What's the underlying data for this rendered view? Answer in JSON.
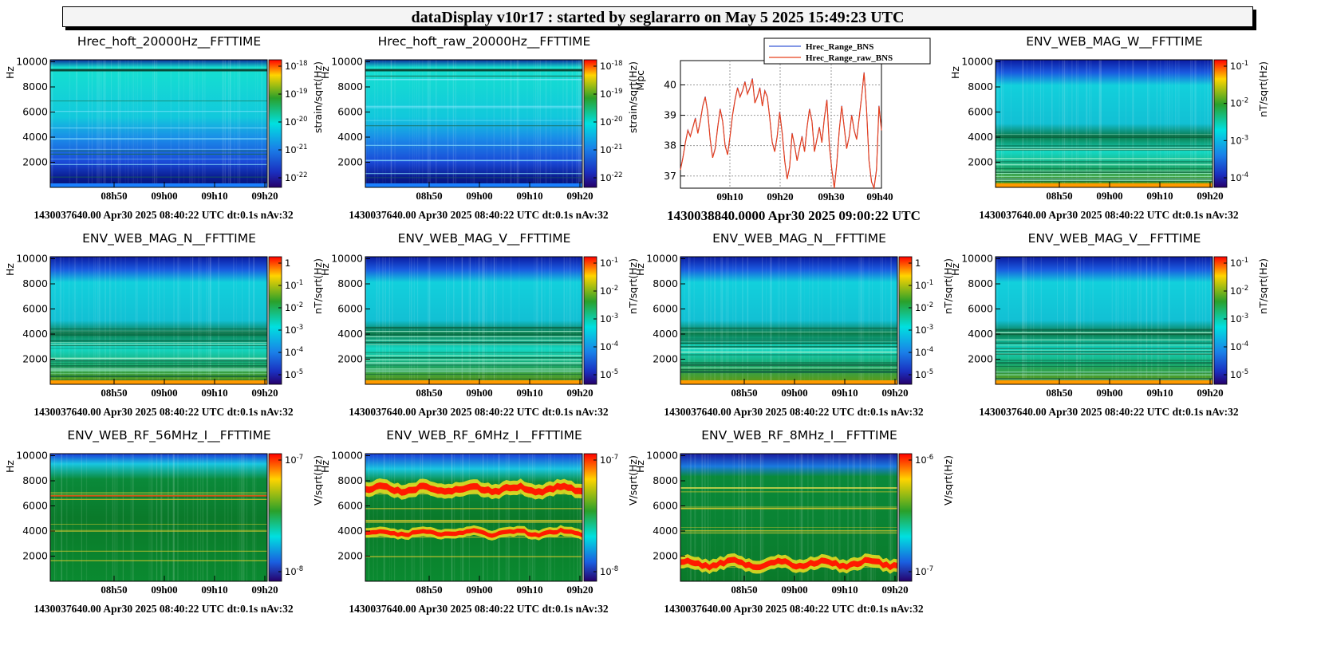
{
  "header": {
    "title": "dataDisplay v10r17 : started by seglararro on May  5 2025 15:49:23 UTC"
  },
  "chart_data": [
    {
      "type": "heatmap",
      "id": "p0",
      "title": "Hrec_hoft_20000Hz__FFTTIME",
      "ylabel": "Hz",
      "zlabel": "strain/sqrt(Hz)",
      "yticks": [
        "10000",
        "8000",
        "6000",
        "4000",
        "2000"
      ],
      "xticks": [
        "08h50",
        "09h00",
        "09h10",
        "09h20"
      ],
      "cbticks": [
        {
          "b": "10",
          "e": "-18"
        },
        {
          "b": "10",
          "e": "-19"
        },
        {
          "b": "10",
          "e": "-20"
        },
        {
          "b": "10",
          "e": "-21"
        },
        {
          "b": "10",
          "e": "-22"
        }
      ],
      "footer": "1430037640.00 Apr30 2025 08:40:22 UTC dt:0.1s nAv:32",
      "style": "hoft"
    },
    {
      "type": "heatmap",
      "id": "p1",
      "title": "Hrec_hoft_raw_20000Hz__FFTTIME",
      "ylabel": "Hz",
      "zlabel": "strain/sqrt(Hz)",
      "yticks": [
        "10000",
        "8000",
        "6000",
        "4000",
        "2000"
      ],
      "xticks": [
        "08h50",
        "09h00",
        "09h10",
        "09h20"
      ],
      "cbticks": [
        {
          "b": "10",
          "e": "-18"
        },
        {
          "b": "10",
          "e": "-19"
        },
        {
          "b": "10",
          "e": "-20"
        },
        {
          "b": "10",
          "e": "-21"
        },
        {
          "b": "10",
          "e": "-22"
        }
      ],
      "footer": "1430037640.00 Apr30 2025 08:40:22 UTC dt:0.1s nAv:32",
      "style": "hoft"
    },
    {
      "type": "line",
      "id": "p2",
      "title": "",
      "ylabel": "Mpc",
      "ylim": [
        36.6,
        40.8
      ],
      "yticks": [
        "40",
        "39",
        "38",
        "37"
      ],
      "xticks": [
        "09h10",
        "09h20",
        "09h30",
        "09h40"
      ],
      "series": [
        {
          "name": "Hrec_Range_BNS",
          "color": "#3b5bd6"
        },
        {
          "name": "Hrec_Range_raw_BNS",
          "color": "#e8401c"
        }
      ],
      "values": [
        37.2,
        37.6,
        38.1,
        38.5,
        38.3,
        38.6,
        38.9,
        38.4,
        38.8,
        39.3,
        39.6,
        39.1,
        38.2,
        37.6,
        37.9,
        38.6,
        39.2,
        38.8,
        38.0,
        37.7,
        38.3,
        39.0,
        39.5,
        39.9,
        39.6,
        39.8,
        40.1,
        39.7,
        39.9,
        40.2,
        39.4,
        39.6,
        39.9,
        39.3,
        39.8,
        39.6,
        38.9,
        38.1,
        37.8,
        38.3,
        39.1,
        38.4,
        37.5,
        36.9,
        37.3,
        38.4,
        38.0,
        37.5,
        37.9,
        38.3,
        37.8,
        38.6,
        39.2,
        38.8,
        37.8,
        38.2,
        38.6,
        38.1,
        38.9,
        39.5,
        38.0,
        37.2,
        36.6,
        37.4,
        38.5,
        39.3,
        38.6,
        37.9,
        38.3,
        39.0,
        38.5,
        38.2,
        38.9,
        39.6,
        40.4,
        39.2,
        37.5,
        36.8,
        36.6,
        37.2,
        39.3,
        38.5
      ],
      "footer": "1430038840.0000 Apr30 2025 09:00:22 UTC"
    },
    {
      "type": "heatmap",
      "id": "p3",
      "title": "ENV_WEB_MAG_W__FFTTIME",
      "ylabel": "Hz",
      "zlabel": "nT/sqrt(Hz)",
      "yticks": [
        "10000",
        "8000",
        "6000",
        "4000",
        "2000"
      ],
      "xticks": [
        "08h50",
        "09h00",
        "09h10",
        "09h20"
      ],
      "cbticks": [
        {
          "b": "10",
          "e": "-1"
        },
        {
          "b": "10",
          "e": "-2"
        },
        {
          "b": "10",
          "e": "-3"
        },
        {
          "b": "10",
          "e": "-4"
        }
      ],
      "footer": "1430037640.00 Apr30 2025 08:40:22 UTC dt:0.1s nAv:32",
      "style": "mag"
    },
    {
      "type": "heatmap",
      "id": "p4",
      "title": "ENV_WEB_MAG_N__FFTTIME",
      "ylabel": "Hz",
      "zlabel": "nT/sqrt(Hz)",
      "yticks": [
        "10000",
        "8000",
        "6000",
        "4000",
        "2000"
      ],
      "xticks": [
        "08h50",
        "09h00",
        "09h10",
        "09h20"
      ],
      "cbticks": [
        {
          "b": "1",
          "e": ""
        },
        {
          "b": "10",
          "e": "-1"
        },
        {
          "b": "10",
          "e": "-2"
        },
        {
          "b": "10",
          "e": "-3"
        },
        {
          "b": "10",
          "e": "-4"
        },
        {
          "b": "10",
          "e": "-5"
        }
      ],
      "footer": "1430037640.00 Apr30 2025 08:40:22 UTC dt:0.1s nAv:32",
      "style": "mag"
    },
    {
      "type": "heatmap",
      "id": "p5",
      "title": "ENV_WEB_MAG_V__FFTTIME",
      "ylabel": "Hz",
      "zlabel": "nT/sqrt(Hz)",
      "yticks": [
        "10000",
        "8000",
        "6000",
        "4000",
        "2000"
      ],
      "xticks": [
        "08h50",
        "09h00",
        "09h10",
        "09h20"
      ],
      "cbticks": [
        {
          "b": "10",
          "e": "-1"
        },
        {
          "b": "10",
          "e": "-2"
        },
        {
          "b": "10",
          "e": "-3"
        },
        {
          "b": "10",
          "e": "-4"
        },
        {
          "b": "10",
          "e": "-5"
        }
      ],
      "footer": "1430037640.00 Apr30 2025 08:40:22 UTC dt:0.1s nAv:32",
      "style": "mag"
    },
    {
      "type": "heatmap",
      "id": "p6",
      "title": "ENV_WEB_MAG_N__FFTTIME",
      "ylabel": "Hz",
      "zlabel": "nT/sqrt(Hz)",
      "yticks": [
        "10000",
        "8000",
        "6000",
        "4000",
        "2000"
      ],
      "xticks": [
        "08h50",
        "09h00",
        "09h10",
        "09h20"
      ],
      "cbticks": [
        {
          "b": "1",
          "e": ""
        },
        {
          "b": "10",
          "e": "-1"
        },
        {
          "b": "10",
          "e": "-2"
        },
        {
          "b": "10",
          "e": "-3"
        },
        {
          "b": "10",
          "e": "-4"
        },
        {
          "b": "10",
          "e": "-5"
        }
      ],
      "footer": "1430037640.00 Apr30 2025 08:40:22 UTC dt:0.1s nAv:32",
      "style": "mag"
    },
    {
      "type": "heatmap",
      "id": "p7",
      "title": "ENV_WEB_MAG_V__FFTTIME",
      "ylabel": "Hz",
      "zlabel": "nT/sqrt(Hz)",
      "yticks": [
        "10000",
        "8000",
        "6000",
        "4000",
        "2000"
      ],
      "xticks": [
        "08h50",
        "09h00",
        "09h10",
        "09h20"
      ],
      "cbticks": [
        {
          "b": "10",
          "e": "-1"
        },
        {
          "b": "10",
          "e": "-2"
        },
        {
          "b": "10",
          "e": "-3"
        },
        {
          "b": "10",
          "e": "-4"
        },
        {
          "b": "10",
          "e": "-5"
        }
      ],
      "footer": "1430037640.00 Apr30 2025 08:40:22 UTC dt:0.1s nAv:32",
      "style": "mag"
    },
    {
      "type": "heatmap",
      "id": "p8",
      "title": "ENV_WEB_RF_56MHz_I__FFTTIME",
      "ylabel": "Hz",
      "zlabel": "V/sqrt(Hz)",
      "yticks": [
        "10000",
        "8000",
        "6000",
        "4000",
        "2000"
      ],
      "xticks": [
        "08h50",
        "09h00",
        "09h10",
        "09h20"
      ],
      "cbticks": [
        {
          "b": "10",
          "e": "-7"
        },
        {
          "b": "10",
          "e": "-8"
        }
      ],
      "footer": "1430037640.00 Apr30 2025 08:40:22 UTC dt:0.1s nAv:32",
      "style": "rf56"
    },
    {
      "type": "heatmap",
      "id": "p9",
      "title": "ENV_WEB_RF_6MHz_I__FFTTIME",
      "ylabel": "Hz",
      "zlabel": "V/sqrt(Hz)",
      "yticks": [
        "10000",
        "8000",
        "6000",
        "4000",
        "2000"
      ],
      "xticks": [
        "08h50",
        "09h00",
        "09h10",
        "09h20"
      ],
      "cbticks": [
        {
          "b": "10",
          "e": "-7"
        },
        {
          "b": "10",
          "e": "-8"
        }
      ],
      "footer": "1430037640.00 Apr30 2025 08:40:22 UTC dt:0.1s nAv:32",
      "style": "rf6"
    },
    {
      "type": "heatmap",
      "id": "p10",
      "title": "ENV_WEB_RF_8MHz_I__FFTTIME",
      "ylabel": "Hz",
      "zlabel": "V/sqrt(Hz)",
      "yticks": [
        "10000",
        "8000",
        "6000",
        "4000",
        "2000"
      ],
      "xticks": [
        "08h50",
        "09h00",
        "09h10",
        "09h20"
      ],
      "cbticks": [
        {
          "b": "10",
          "e": "-6"
        },
        {
          "b": "10",
          "e": "-7"
        }
      ],
      "footer": "1430037640.00 Apr30 2025 08:40:22 UTC dt:0.1s nAv:32",
      "style": "rf8"
    }
  ]
}
